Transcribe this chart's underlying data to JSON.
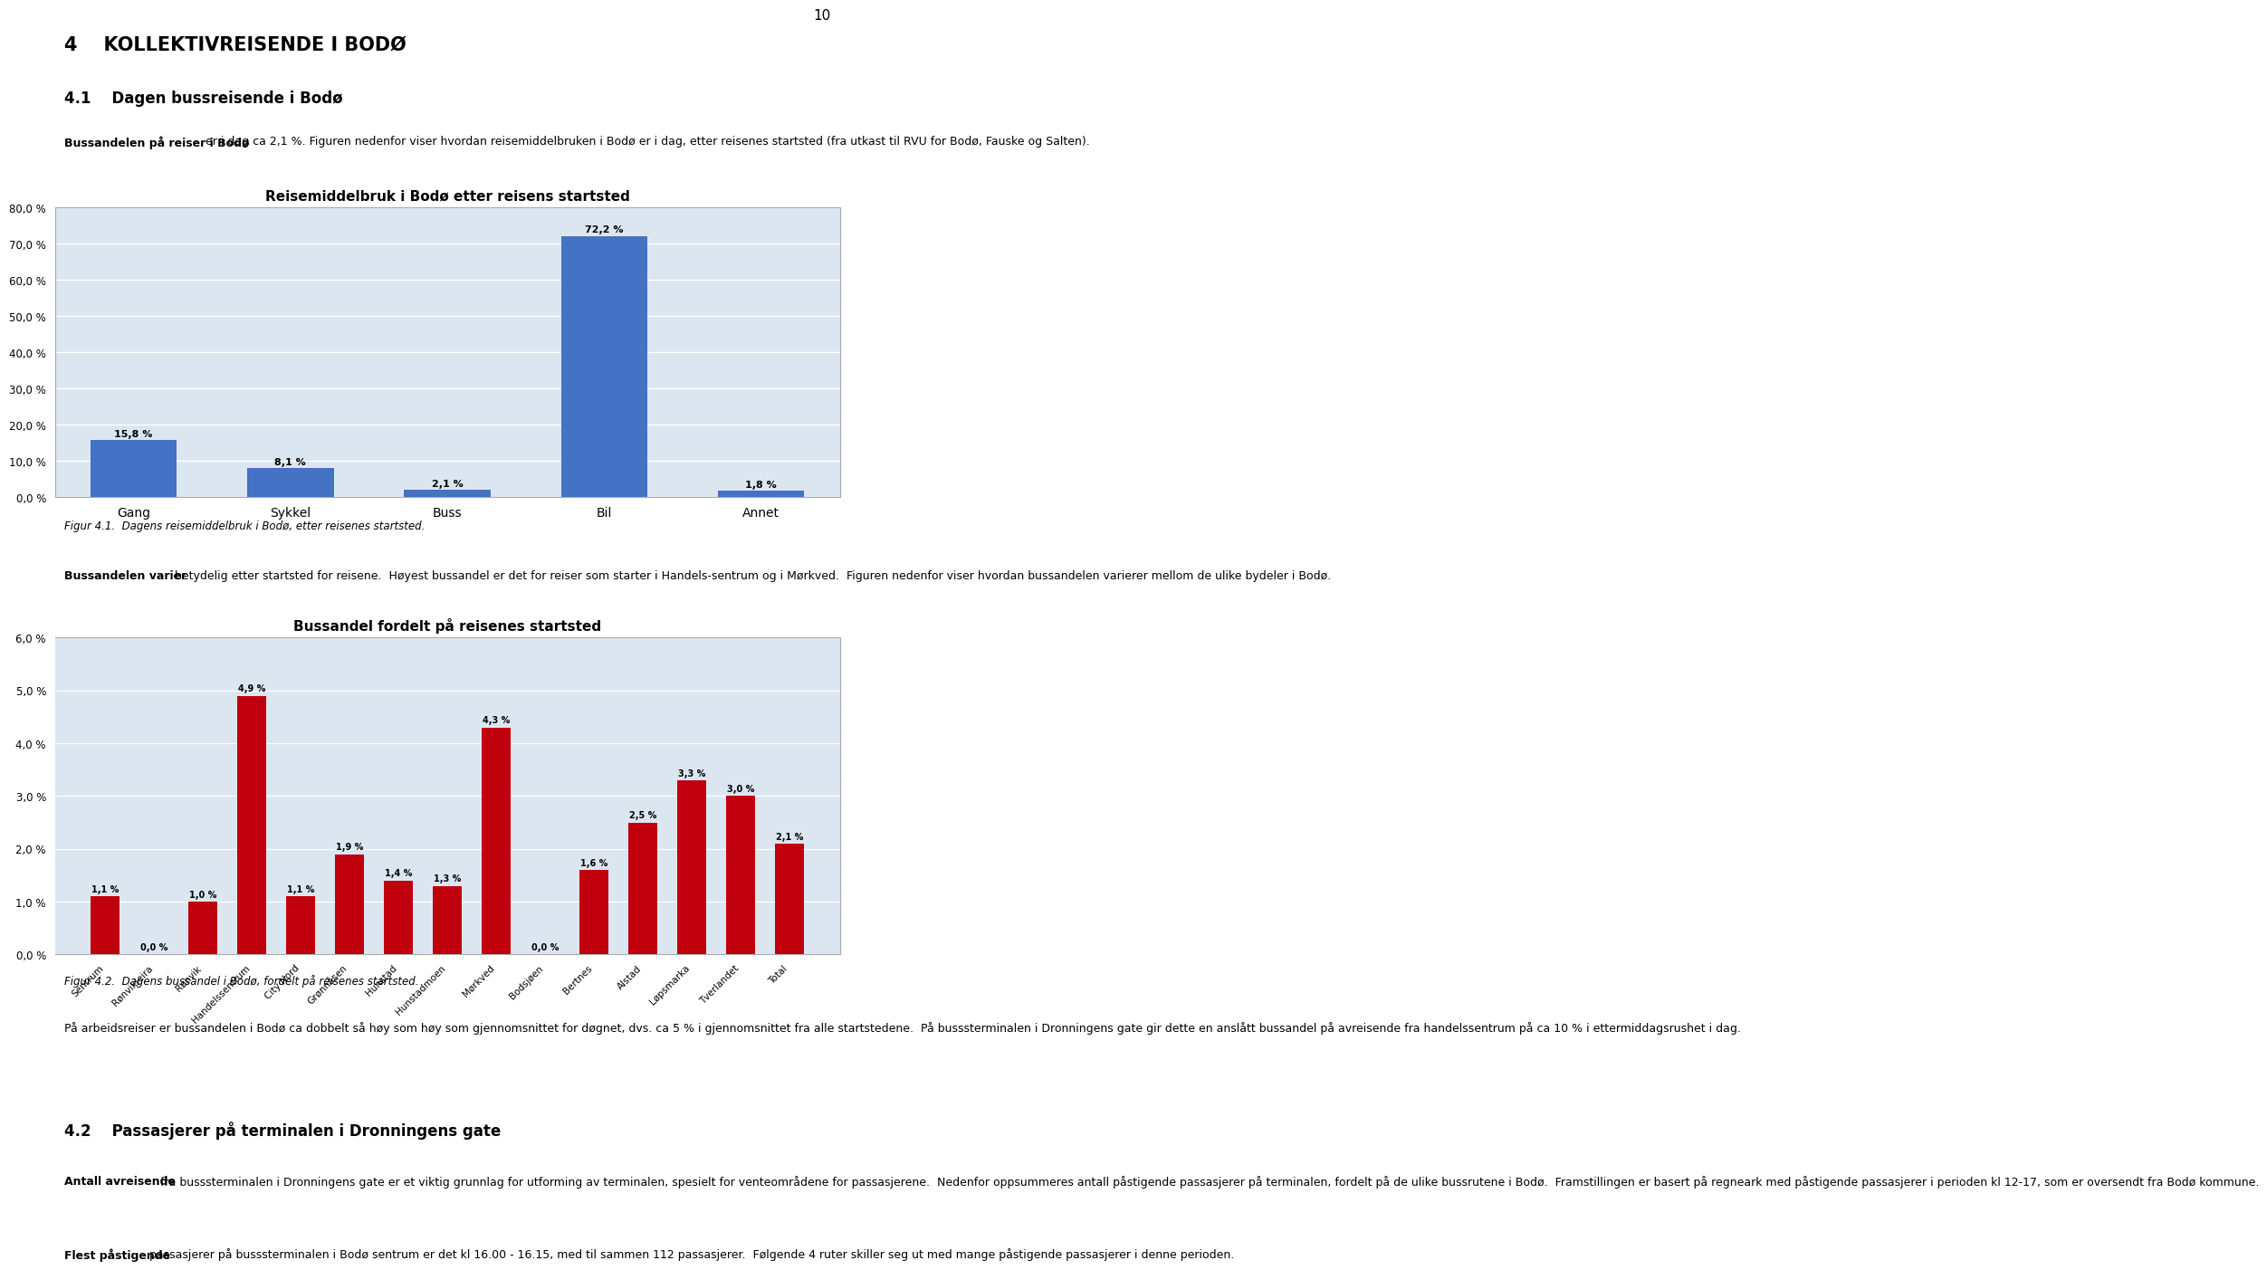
{
  "chart1": {
    "title": "Reisemiddelbruk i Bodø etter reisens startsted",
    "categories": [
      "Gang",
      "Sykkel",
      "Buss",
      "Bil",
      "Annet"
    ],
    "values": [
      15.8,
      8.1,
      2.1,
      72.2,
      1.8
    ],
    "labels": [
      "15,8 %",
      "8,1 %",
      "2,1 %",
      "72,2 %",
      "1,8 %"
    ],
    "bar_color": "#4472C4",
    "ylim": [
      0,
      80
    ],
    "yticks": [
      0,
      10,
      20,
      30,
      40,
      50,
      60,
      70,
      80
    ],
    "ytick_labels": [
      "0,0 %",
      "10,0 %",
      "20,0 %",
      "30,0 %",
      "40,0 %",
      "50,0 %",
      "60,0 %",
      "70,0 %",
      "80,0 %"
    ],
    "plot_bg": "#DCE6F1"
  },
  "chart2": {
    "title": "Bussandel fordelt på reisenes startsted",
    "categories": [
      "Sentrum",
      "Rønvikleira",
      "Rønvik",
      "Handelssentrum",
      "City Nord",
      "Grønnåsen",
      "Hunstad",
      "Hunstadmoen",
      "Mørkved",
      "Bodsjøen",
      "Bertnes",
      "Alstad",
      "Løpsmarka",
      "Tverlandet",
      "Total"
    ],
    "values": [
      1.1,
      0.0,
      1.0,
      4.9,
      1.1,
      1.9,
      1.4,
      1.3,
      4.3,
      0.0,
      1.6,
      2.5,
      3.3,
      3.0,
      2.1
    ],
    "labels": [
      "1,1 %",
      "0,0 %",
      "1,0 %",
      "4,9 %",
      "1,1 %",
      "1,9 %",
      "1,4 %",
      "1,3 %",
      "4,3 %",
      "0,0 %",
      "1,6 %",
      "2,5 %",
      "3,3 %",
      "3,0 %",
      "2,1 %"
    ],
    "bar_color": "#C0000C",
    "ylim": [
      0,
      6
    ],
    "yticks": [
      0,
      1,
      2,
      3,
      4,
      5,
      6
    ],
    "ytick_labels": [
      "0,0 %",
      "1,0 %",
      "2,0 %",
      "3,0 %",
      "4,0 %",
      "5,0 %",
      "6,0 %"
    ],
    "plot_bg": "#DCE6F1"
  },
  "page_number": "10",
  "heading1": "4    KOLLEKTIVREISENDE I BODØ",
  "heading2": "4.1    Dagen bussreisende i Bodø",
  "para1_bold": "Bussandelen på reiser i Bodø",
  "para1_rest": " er i dag ca 2,1 %. Figuren nedenfor viser hvordan reisemiddelbruken i Bodø er i dag, etter reisenes startsted (fra utkast til RVU for Bodø, Fauske og Salten).",
  "figcap1": "Figur 4.1.  Dagens reisemiddelbruk i Bodø, etter reisenes startsted.",
  "para2_bold": "Bussandelen varier",
  "para2_rest": " betydelig etter startsted for reisene.  Høyest bussandel er det for reiser som starter i Handels-sentrum og i Mørkved.  Figuren nedenfor viser hvordan bussandelen varierer mellom de ulike bydeler i Bodø.",
  "figcap2": "Figur 4.2.  Dagens bussandel i Bodø, fordelt på reisenes startsted.",
  "para3": "På arbeidsreiser er bussandelen i Bodø ca dobbelt så høy som høy som gjennomsnittet for døgnet, dvs. ca 5 % i gjennomsnittet fra alle startstedene.  På busssterminalen i Dronningens gate gir dette en anslått bussandel på avreisende fra handelssentrum på ca 10 % i ettermiddagsrushet i dag.",
  "heading3": "4.2    Passasjerer på terminalen i Dronningens gate",
  "para4_bold": "Antall avreisende",
  "para4_rest": " fra busssterminalen i Dronningens gate er et viktig grunnlag for utforming av terminalen, spesielt for venteområdene for passasjerene.  Nedenfor oppsummeres antall påstigende passasjerer på terminalen, fordelt på de ulike bussrutene i Bodø.  Framstillingen er basert på regneark med påstigende passasjerer i perioden kl 12-17, som er oversendt fra Bodø kommune.",
  "para5_bold": "Flest påstigende",
  "para5_rest": " passasjerer på busssterminalen i Bodø sentrum er det kl 16.00 - 16.15, med til sammen 112 passasjerer.  Følgende 4 ruter skiller seg ut med mange påstigende passasjerer i denne perioden."
}
